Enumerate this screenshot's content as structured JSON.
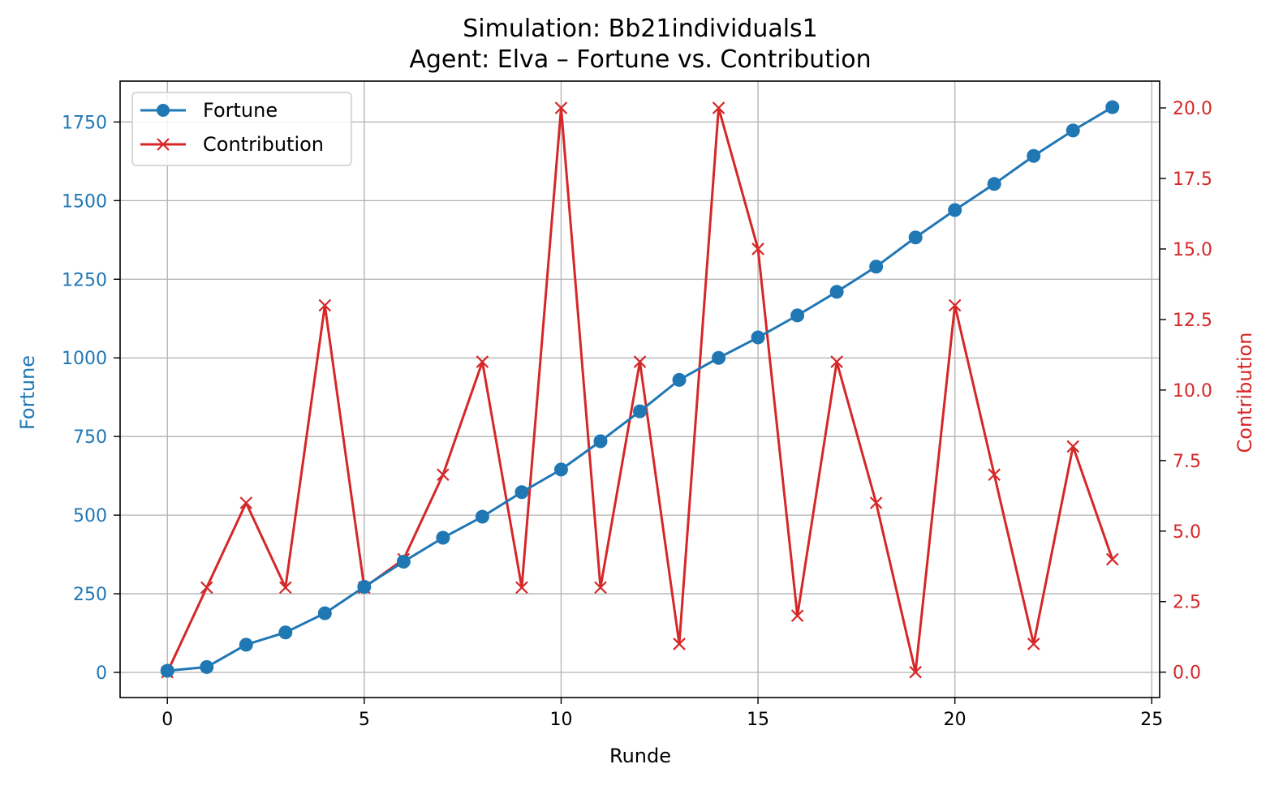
{
  "chart_data": {
    "type": "line",
    "title": "Simulation: Bb21individuals1",
    "subtitle": "Agent: Elva – Fortune vs. Contribution",
    "xlabel": "Runde",
    "ylabel_left": "Fortune",
    "ylabel_right": "Contribution",
    "xlim": [
      -1.2,
      25.2
    ],
    "ylim_left": [
      -80,
      1880
    ],
    "ylim_right": [
      -0.9,
      20.95
    ],
    "x_ticks": [
      0,
      5,
      10,
      15,
      20,
      25
    ],
    "y_left_ticks": [
      0,
      250,
      500,
      750,
      1000,
      1250,
      1500,
      1750
    ],
    "y_right_ticks": [
      0,
      2.5,
      5,
      7.5,
      10,
      12.5,
      15,
      17.5,
      20
    ],
    "y_right_tick_labels": [
      "0.0",
      "2.5",
      "5.0",
      "7.5",
      "10.0",
      "12.5",
      "15.0",
      "17.5",
      "20.0"
    ],
    "grid": true,
    "legend_position": "top-left",
    "x": [
      0,
      1,
      2,
      3,
      4,
      5,
      6,
      7,
      8,
      9,
      10,
      11,
      12,
      13,
      14,
      15,
      16,
      17,
      18,
      19,
      20,
      21,
      22,
      23,
      24
    ],
    "series": [
      {
        "name": "Fortune",
        "axis": "left",
        "color": "#1f77b4",
        "marker": "circle",
        "values": [
          5,
          17,
          88,
          127,
          188,
          272,
          352,
          428,
          495,
          573,
          645,
          735,
          830,
          930,
          1000,
          1065,
          1135,
          1210,
          1290,
          1383,
          1470,
          1553,
          1642,
          1723,
          1797
        ]
      },
      {
        "name": "Contribution",
        "axis": "right",
        "color": "#d62728",
        "marker": "x",
        "values": [
          0,
          3,
          6,
          3,
          13,
          3,
          4,
          7,
          11,
          3,
          20,
          3,
          11,
          1,
          20,
          15,
          2,
          11,
          6,
          0,
          13,
          7,
          1,
          8,
          4
        ]
      }
    ]
  }
}
